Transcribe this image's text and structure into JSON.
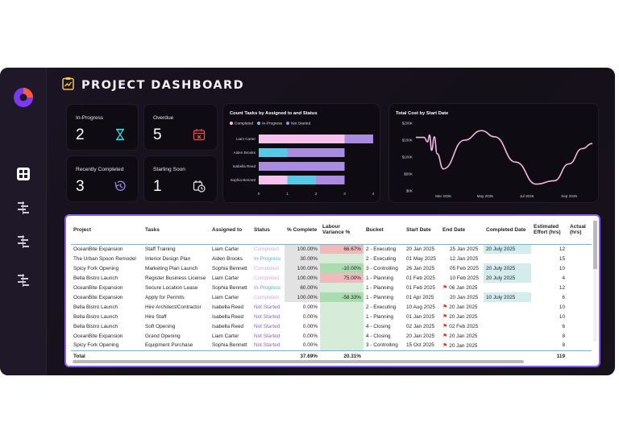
{
  "header": {
    "title": "PROJECT DASHBOARD"
  },
  "sidebar": {
    "items": [
      {
        "icon": "pie-chart-logo-icon"
      },
      {
        "icon": "dashboard-grid-icon"
      },
      {
        "icon": "gantt-icon"
      },
      {
        "icon": "gantt-icon"
      },
      {
        "icon": "gantt-icon"
      }
    ]
  },
  "kpis": [
    {
      "label": "In-Progress",
      "value": "2",
      "icon": "hourglass-icon",
      "color": "#3fd1d8"
    },
    {
      "label": "Overdue",
      "value": "5",
      "icon": "calendar-x-icon",
      "color": "#e04c4c"
    },
    {
      "label": "Recently Completed",
      "value": "3",
      "icon": "history-icon",
      "color": "#9b7be3"
    },
    {
      "label": "Starting Soon",
      "value": "1",
      "icon": "calendar-clock-icon",
      "color": "#e6e6e6"
    }
  ],
  "bar_chart": {
    "title": "Count Tasks by Assigned to and Status",
    "legend": [
      "Completed",
      "In-Progress",
      "Not Started"
    ]
  },
  "line_chart": {
    "title": "Total Cost by Start Date"
  },
  "chart_data": [
    {
      "type": "bar",
      "orientation": "horizontal",
      "stacked": true,
      "title": "Count Tasks by Assigned to and Status",
      "categories": [
        "Liam Carter",
        "Aiden Brooks",
        "Isabella Reed",
        "Sophia Bennett"
      ],
      "series": [
        {
          "name": "Completed",
          "color": "#f5c2ee",
          "values": [
            3,
            0,
            0,
            1
          ]
        },
        {
          "name": "In-Progress",
          "color": "#57c8e6",
          "values": [
            0,
            1,
            0,
            1
          ]
        },
        {
          "name": "Not Started",
          "color": "#a98be0",
          "values": [
            1,
            2,
            3,
            1
          ]
        }
      ],
      "xticks": [
        "0",
        "1",
        "2",
        "3",
        "4"
      ],
      "xlim": [
        0,
        4
      ],
      "legend_position": "top-left"
    },
    {
      "type": "line",
      "title": "Total Cost by Start Date",
      "color": "#f2b8e2",
      "ylim": [
        0,
        200
      ],
      "yticks": [
        "$0K",
        "$50K",
        "$100K",
        "$150K",
        "$200K"
      ],
      "xticks": [
        "Mar 2025",
        "May 2025",
        "Jul 2025",
        "Sep 2025"
      ],
      "x": [
        "2025-01-20",
        "2025-02-01",
        "2025-02-06",
        "2025-02-09",
        "2025-02-12",
        "2025-02-16",
        "2025-02-20",
        "2025-03-01",
        "2025-04-01",
        "2025-04-26",
        "2025-05-15",
        "2025-06-15",
        "2025-07-15",
        "2025-08-10",
        "2025-09-01",
        "2025-09-20",
        "2025-10-05"
      ],
      "y": [
        158,
        158,
        145,
        165,
        120,
        160,
        110,
        65,
        150,
        178,
        160,
        85,
        20,
        30,
        80,
        125,
        140
      ]
    }
  ],
  "table": {
    "columns": [
      "Project",
      "Tasks",
      "Assigned to",
      "Status",
      "% Complete",
      "Labour Variance %",
      "Bucket",
      "Start Date",
      "End Date",
      "Completed Date",
      "Estimated Effort (hrs)",
      "Actual (hrs)"
    ],
    "rows": [
      {
        "project": "OceanBite Expansion",
        "task": "Staff Training",
        "assigned": "Liam Carter",
        "status": "Completed",
        "pct": "100.00%",
        "lv": "66.67%",
        "bucket": "2 - Executing",
        "start": "20 Jan 2025",
        "end": "25 Jan 2025",
        "completed": "20 July 2025",
        "est": "12"
      },
      {
        "project": "The Urban Spoon Remodel",
        "task": "Interior Design Plan",
        "assigned": "Aiden Brooks",
        "status": "In-Progress",
        "pct": "30.00%",
        "lv": "",
        "bucket": "2 - Executing",
        "start": "01 May 2025",
        "end": "12 Jan 2025",
        "completed": "",
        "est": "15"
      },
      {
        "project": "Spicy Fork Opening",
        "task": "Marketing Plan Launch",
        "assigned": "Sophia Bennett",
        "status": "Completed",
        "pct": "100.00%",
        "lv": "-10.00%",
        "bucket": "3 - Controlling",
        "start": "26 Jan 2025",
        "end": "05 Feb 2025",
        "completed": "20 July 2025",
        "est": "10"
      },
      {
        "project": "Bella Bistro Launch",
        "task": "Register Business License",
        "assigned": "Liam Carter",
        "status": "Completed",
        "pct": "100.00%",
        "lv": "75.00%",
        "bucket": "1 - Planning",
        "start": "01 Feb 2025",
        "end": "10 Feb 2025",
        "completed": "20 July 2025",
        "est": "4"
      },
      {
        "project": "OceanBite Expansion",
        "task": "Secure Location Lease",
        "assigned": "Sophia Bennett",
        "status": "In-Progress",
        "pct": "60.00%",
        "lv": "",
        "bucket": "1 - Planning",
        "start": "01 Feb 2025",
        "end": "06 Jan 2025",
        "completed": "",
        "est": "12"
      },
      {
        "project": "OceanBite Expansion",
        "task": "Apply for Permits",
        "assigned": "Liam Carter",
        "status": "Completed",
        "pct": "100.00%",
        "lv": "-58.33%",
        "bucket": "1 - Planning",
        "start": "01 Apr 2025",
        "end": "20 Jan 2025",
        "completed": "10 July 2025",
        "est": "6"
      },
      {
        "project": "Bella Bistro Launch",
        "task": "Hire Architect/Contractor",
        "assigned": "Isabella Reed",
        "status": "Not Started",
        "pct": "0.00%",
        "lv": "",
        "bucket": "2 - Executing",
        "start": "10 Aug 2025",
        "end": "20 Jan 2025",
        "completed": "",
        "est": "10"
      },
      {
        "project": "Bella Bistro Launch",
        "task": "Hire Staff",
        "assigned": "Isabella Reed",
        "status": "Not Started",
        "pct": "0.00%",
        "lv": "",
        "bucket": "1 - Planning",
        "start": "01 Jan 2025",
        "end": "20 Jan 2025",
        "completed": "",
        "est": "10"
      },
      {
        "project": "Bella Bistro Launch",
        "task": "Soft Opening",
        "assigned": "Isabella Reed",
        "status": "Not Started",
        "pct": "0.00%",
        "lv": "",
        "bucket": "4 - Closing",
        "start": "02 Jan 2025",
        "end": "02 Feb 2025",
        "completed": "",
        "est": "6"
      },
      {
        "project": "OceanBite Expansion",
        "task": "Grand Opening",
        "assigned": "Liam Carter",
        "status": "Not Started",
        "pct": "0.00%",
        "lv": "",
        "bucket": "4 - Closing",
        "start": "20 Jan 2025",
        "end": "20 Jan 2025",
        "completed": "",
        "est": "8"
      },
      {
        "project": "Spicy Fork Opening",
        "task": "Equipment Purchase",
        "assigned": "Sophia Bennett",
        "status": "Not Started",
        "pct": "0.00%",
        "lv": "",
        "bucket": "3 - Controlling",
        "start": "15 Oct 2025",
        "end": "20 Jan 2025",
        "completed": "",
        "est": "8"
      }
    ],
    "total": {
      "label": "Total",
      "pct": "37.69%",
      "lv": "20.31%",
      "est": "119"
    }
  }
}
